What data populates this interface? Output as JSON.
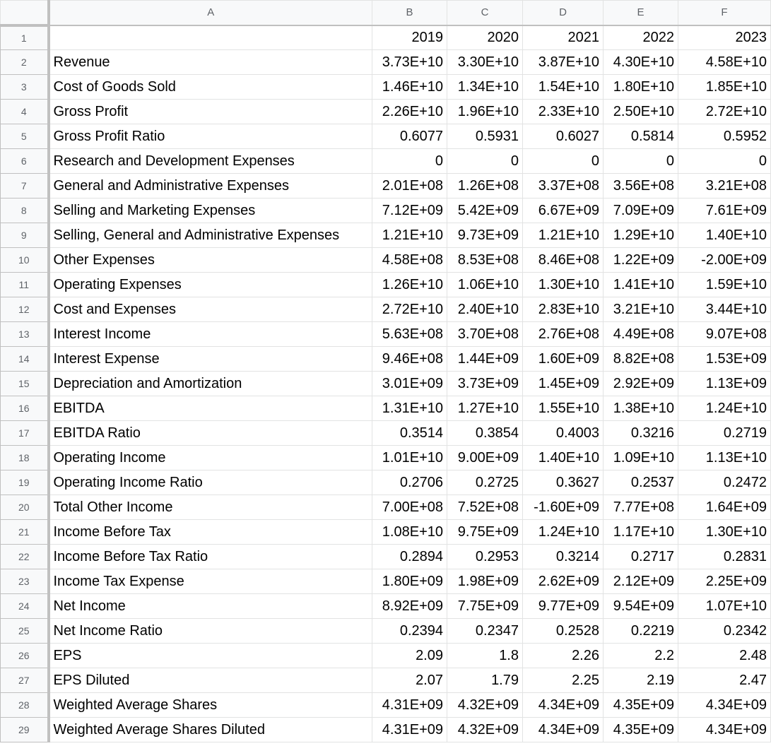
{
  "sheet": {
    "columns": [
      "A",
      "B",
      "C",
      "D",
      "E",
      "F"
    ],
    "rows": [
      {
        "n": "1",
        "label": "",
        "v": [
          "2019",
          "2020",
          "2021",
          "2022",
          "2023"
        ]
      },
      {
        "n": "2",
        "label": "Revenue",
        "v": [
          "3.73E+10",
          "3.30E+10",
          "3.87E+10",
          "4.30E+10",
          "4.58E+10"
        ]
      },
      {
        "n": "3",
        "label": "Cost of Goods Sold",
        "v": [
          "1.46E+10",
          "1.34E+10",
          "1.54E+10",
          "1.80E+10",
          "1.85E+10"
        ]
      },
      {
        "n": "4",
        "label": "Gross Profit",
        "v": [
          "2.26E+10",
          "1.96E+10",
          "2.33E+10",
          "2.50E+10",
          "2.72E+10"
        ]
      },
      {
        "n": "5",
        "label": "Gross Profit Ratio",
        "v": [
          "0.6077",
          "0.5931",
          "0.6027",
          "0.5814",
          "0.5952"
        ]
      },
      {
        "n": "6",
        "label": "Research and Development Expenses",
        "v": [
          "0",
          "0",
          "0",
          "0",
          "0"
        ]
      },
      {
        "n": "7",
        "label": "General and Administrative Expenses",
        "v": [
          "2.01E+08",
          "1.26E+08",
          "3.37E+08",
          "3.56E+08",
          "3.21E+08"
        ]
      },
      {
        "n": "8",
        "label": "Selling and Marketing Expenses",
        "v": [
          "7.12E+09",
          "5.42E+09",
          "6.67E+09",
          "7.09E+09",
          "7.61E+09"
        ]
      },
      {
        "n": "9",
        "label": "Selling, General and Administrative Expenses",
        "v": [
          "1.21E+10",
          "9.73E+09",
          "1.21E+10",
          "1.29E+10",
          "1.40E+10"
        ]
      },
      {
        "n": "10",
        "label": "Other Expenses",
        "v": [
          "4.58E+08",
          "8.53E+08",
          "8.46E+08",
          "1.22E+09",
          "-2.00E+09"
        ]
      },
      {
        "n": "11",
        "label": "Operating Expenses",
        "v": [
          "1.26E+10",
          "1.06E+10",
          "1.30E+10",
          "1.41E+10",
          "1.59E+10"
        ]
      },
      {
        "n": "12",
        "label": "Cost and Expenses",
        "v": [
          "2.72E+10",
          "2.40E+10",
          "2.83E+10",
          "3.21E+10",
          "3.44E+10"
        ]
      },
      {
        "n": "13",
        "label": "Interest Income",
        "v": [
          "5.63E+08",
          "3.70E+08",
          "2.76E+08",
          "4.49E+08",
          "9.07E+08"
        ]
      },
      {
        "n": "14",
        "label": "Interest Expense",
        "v": [
          "9.46E+08",
          "1.44E+09",
          "1.60E+09",
          "8.82E+08",
          "1.53E+09"
        ]
      },
      {
        "n": "15",
        "label": "Depreciation and Amortization",
        "v": [
          "3.01E+09",
          "3.73E+09",
          "1.45E+09",
          "2.92E+09",
          "1.13E+09"
        ]
      },
      {
        "n": "16",
        "label": "EBITDA",
        "v": [
          "1.31E+10",
          "1.27E+10",
          "1.55E+10",
          "1.38E+10",
          "1.24E+10"
        ]
      },
      {
        "n": "17",
        "label": "EBITDA Ratio",
        "v": [
          "0.3514",
          "0.3854",
          "0.4003",
          "0.3216",
          "0.2719"
        ]
      },
      {
        "n": "18",
        "label": "Operating Income",
        "v": [
          "1.01E+10",
          "9.00E+09",
          "1.40E+10",
          "1.09E+10",
          "1.13E+10"
        ]
      },
      {
        "n": "19",
        "label": "Operating Income Ratio",
        "v": [
          "0.2706",
          "0.2725",
          "0.3627",
          "0.2537",
          "0.2472"
        ]
      },
      {
        "n": "20",
        "label": "Total Other Income",
        "v": [
          "7.00E+08",
          "7.52E+08",
          "-1.60E+09",
          "7.77E+08",
          "1.64E+09"
        ]
      },
      {
        "n": "21",
        "label": "Income Before Tax",
        "v": [
          "1.08E+10",
          "9.75E+09",
          "1.24E+10",
          "1.17E+10",
          "1.30E+10"
        ]
      },
      {
        "n": "22",
        "label": "Income Before Tax Ratio",
        "v": [
          "0.2894",
          "0.2953",
          "0.3214",
          "0.2717",
          "0.2831"
        ]
      },
      {
        "n": "23",
        "label": "Income Tax Expense",
        "v": [
          "1.80E+09",
          "1.98E+09",
          "2.62E+09",
          "2.12E+09",
          "2.25E+09"
        ]
      },
      {
        "n": "24",
        "label": "Net Income",
        "v": [
          "8.92E+09",
          "7.75E+09",
          "9.77E+09",
          "9.54E+09",
          "1.07E+10"
        ]
      },
      {
        "n": "25",
        "label": "Net Income Ratio",
        "v": [
          "0.2394",
          "0.2347",
          "0.2528",
          "0.2219",
          "0.2342"
        ]
      },
      {
        "n": "26",
        "label": "EPS",
        "v": [
          "2.09",
          "1.8",
          "2.26",
          "2.2",
          "2.48"
        ]
      },
      {
        "n": "27",
        "label": "EPS Diluted",
        "v": [
          "2.07",
          "1.79",
          "2.25",
          "2.19",
          "2.47"
        ]
      },
      {
        "n": "28",
        "label": "Weighted Average Shares",
        "v": [
          "4.31E+09",
          "4.32E+09",
          "4.34E+09",
          "4.35E+09",
          "4.34E+09"
        ]
      },
      {
        "n": "29",
        "label": "Weighted Average Shares Diluted",
        "v": [
          "4.31E+09",
          "4.32E+09",
          "4.34E+09",
          "4.35E+09",
          "4.34E+09"
        ]
      }
    ]
  }
}
